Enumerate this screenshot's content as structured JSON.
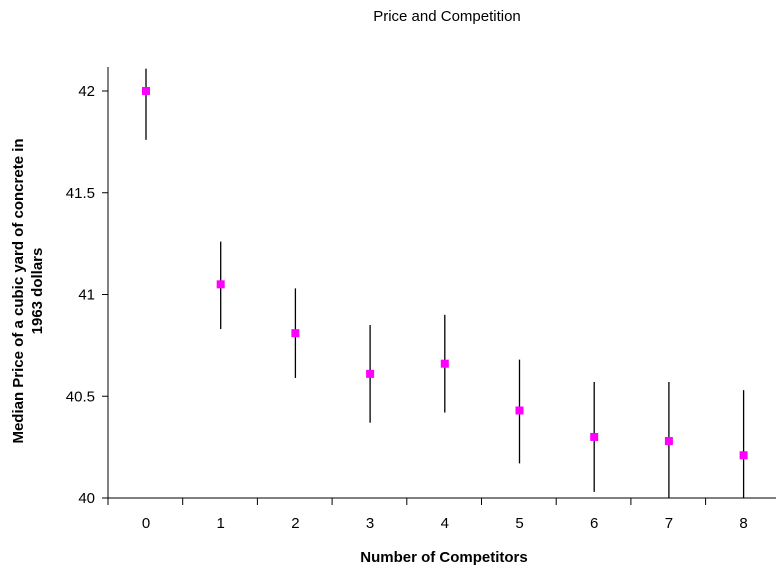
{
  "chart_data": {
    "type": "scatter",
    "title": "Price and Competition",
    "xlabel": "Number of Competitors",
    "ylabel_lines": [
      "Median Price of a cubic yard of concrete in",
      "1963 dollars"
    ],
    "x_categories": [
      "0",
      "1",
      "2",
      "3",
      "4",
      "5",
      "6",
      "7",
      "8"
    ],
    "ylim": [
      40,
      42.1
    ],
    "yticks": [
      40,
      40.5,
      41,
      41.5,
      42
    ],
    "ytick_labels": [
      "40",
      "40.5",
      "41",
      "41.5",
      "42"
    ],
    "grid": false,
    "legend": false,
    "points": [
      {
        "x": "0",
        "y": 42.0,
        "low": 41.76,
        "high": 42.11
      },
      {
        "x": "1",
        "y": 41.05,
        "low": 40.83,
        "high": 41.26
      },
      {
        "x": "2",
        "y": 40.81,
        "low": 40.59,
        "high": 41.03
      },
      {
        "x": "3",
        "y": 40.61,
        "low": 40.37,
        "high": 40.85
      },
      {
        "x": "4",
        "y": 40.66,
        "low": 40.42,
        "high": 40.9
      },
      {
        "x": "5",
        "y": 40.43,
        "low": 40.17,
        "high": 40.68
      },
      {
        "x": "6",
        "y": 40.3,
        "low": 40.03,
        "high": 40.57
      },
      {
        "x": "7",
        "y": 40.28,
        "low": 40.0,
        "high": 40.57
      },
      {
        "x": "8",
        "y": 40.21,
        "low": 40.0,
        "high": 40.53
      }
    ],
    "colors": {
      "marker": "#ff00ff",
      "error_bar": "#000000",
      "axis": "#000000"
    }
  }
}
